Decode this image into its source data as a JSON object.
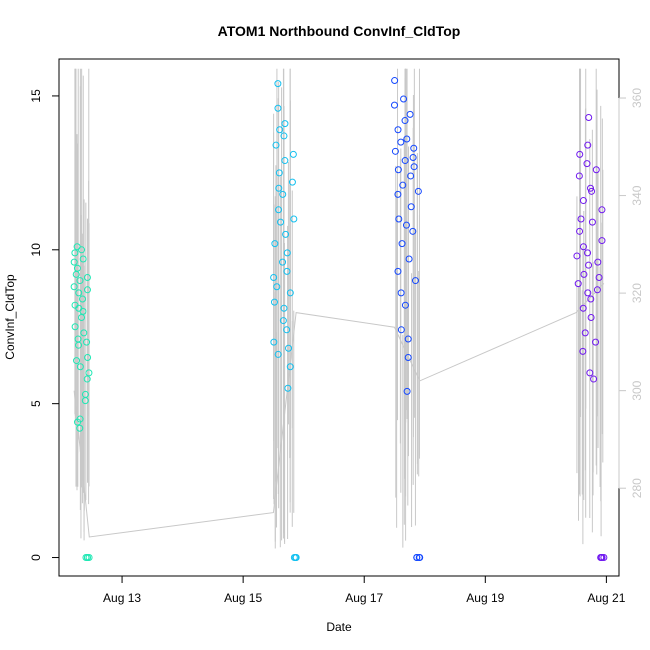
{
  "chart_data": {
    "type": "scatter",
    "title": "ATOM1 Northbound ConvInf_CldTop",
    "xlabel": "Date",
    "ylabel": "ConvInf_CldTop",
    "x_ticks": [
      "Aug 13",
      "Aug 15",
      "Aug 17",
      "Aug 19",
      "Aug 21"
    ],
    "xlim": [
      "2016-08-11 23:00",
      "2016-08-21 05:00"
    ],
    "y_ticks": [
      "0",
      "5",
      "10",
      "15"
    ],
    "ylim": [
      -0.6,
      16.2
    ],
    "y2_ticks": [
      "280",
      "300",
      "320",
      "340",
      "360"
    ],
    "y2lim": [
      262,
      368
    ],
    "grid": false,
    "point_style": "open-circle",
    "colors": {
      "leg1": "#1ee8b4",
      "leg2": "#12c0f0",
      "leg3": "#1448ff",
      "leg4": "#7018f0",
      "secondary_line": "#c8c8c8",
      "secondary_axis": "#c8c8c8"
    },
    "series": [
      {
        "x_range": [
          "2016-08-12 05:00",
          "2016-08-12 11:00"
        ],
        "values": [
          9.6,
          8.8,
          7.5,
          9.9,
          8.2,
          6.4,
          10.1,
          9.2,
          7.1,
          8.6,
          6.9,
          9.4,
          4.4,
          4.2,
          4.5,
          8.1,
          7.8,
          9.0,
          6.2,
          10.0,
          8.4,
          7.3,
          5.1,
          5.3,
          9.7,
          8.0,
          7.0,
          6.5,
          9.1,
          8.7,
          5.8,
          6.0,
          0,
          0,
          0,
          0
        ],
        "color": "#1ee8b4"
      },
      {
        "x_range": [
          "2016-08-15 12:00",
          "2016-08-15 21:00"
        ],
        "values": [
          8.3,
          9.1,
          7.0,
          6.6,
          8.8,
          10.2,
          11.3,
          12.5,
          13.4,
          14.6,
          15.4,
          13.9,
          12.0,
          10.9,
          9.6,
          7.7,
          8.1,
          9.3,
          11.8,
          12.9,
          13.7,
          14.1,
          10.5,
          9.9,
          7.4,
          6.8,
          5.5,
          6.2,
          8.6,
          11.0,
          12.2,
          13.1,
          0,
          0,
          0,
          0
        ],
        "color": "#12c0f0"
      },
      {
        "x_range": [
          "2016-08-17 12:00",
          "2016-08-17 22:00"
        ],
        "values": [
          15.5,
          14.7,
          13.9,
          13.2,
          12.6,
          11.8,
          11.0,
          10.2,
          9.3,
          8.6,
          7.4,
          13.5,
          14.2,
          12.9,
          12.1,
          13.6,
          14.9,
          10.8,
          9.7,
          8.2,
          7.1,
          6.5,
          5.4,
          12.4,
          13.0,
          11.4,
          14.4,
          13.3,
          12.7,
          9.0,
          10.6,
          11.9,
          0,
          0,
          0,
          0
        ],
        "color": "#1448ff"
      },
      {
        "x_range": [
          "2016-08-20 12:00",
          "2016-08-20 23:00"
        ],
        "values": [
          13.1,
          12.4,
          11.0,
          9.8,
          8.9,
          10.6,
          9.2,
          8.1,
          7.3,
          6.7,
          11.6,
          12.8,
          10.1,
          9.5,
          8.6,
          14.3,
          13.4,
          12.0,
          9.9,
          8.4,
          7.8,
          6.0,
          5.8,
          10.9,
          11.9,
          9.1,
          8.7,
          7.0,
          12.6,
          10.3,
          9.6,
          11.3,
          0,
          0,
          0,
          0
        ],
        "color": "#7018f0"
      }
    ],
    "secondary_series": {
      "color": "#c8c8c8",
      "x": [
        "2016-08-12 05:00",
        "2016-08-12 11:00",
        "2016-08-15 12:00",
        "2016-08-15 21:00",
        "2016-08-17 12:00",
        "2016-08-17 22:00",
        "2016-08-20 12:00",
        "2016-08-20 23:00"
      ],
      "y": [
        300,
        270,
        275,
        316,
        313,
        302,
        316,
        322
      ]
    }
  }
}
